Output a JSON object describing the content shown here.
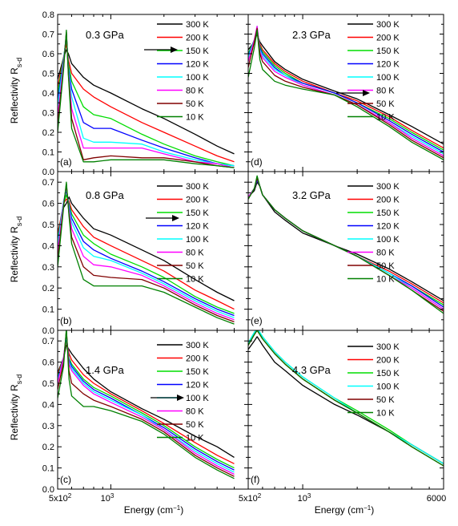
{
  "figure": {
    "ylabel_main": "Reflectivity R",
    "ylabel_sub": "s-d",
    "xlabel_main": "Energy (cm",
    "xlabel_sup": "−1",
    "xlabel_end": ")",
    "x_tick_labels_left": [
      "5x10",
      "10"
    ],
    "x_tick_labels_right": [
      "5x10",
      "10",
      "6000"
    ],
    "x_tick_sup_2": "2",
    "x_tick_sup_3": "3",
    "y_tick_labels_top": [
      "0.0",
      "0.1",
      "0.2",
      "0.3",
      "0.4",
      "0.5",
      "0.6",
      "0.7",
      "0.8"
    ],
    "y_tick_labels_lower": [
      "0.0",
      "0.1",
      "0.2",
      "0.3",
      "0.4",
      "0.5",
      "0.6",
      "0.7"
    ]
  },
  "chart_data": [
    {
      "type": "line",
      "panel": "(a)",
      "pressure": "0.3 GPa",
      "xlim": [
        500,
        6000
      ],
      "ylim": [
        0,
        0.8
      ],
      "xscale": "log",
      "x": [
        500,
        540,
        560,
        575,
        600,
        700,
        800,
        1000,
        1500,
        2000,
        3000,
        4000,
        5000
      ],
      "series": [
        {
          "name": "300 K",
          "color": "#000000",
          "values": [
            0.47,
            0.58,
            0.62,
            0.6,
            0.55,
            0.48,
            0.44,
            0.4,
            0.32,
            0.27,
            0.19,
            0.13,
            0.09
          ]
        },
        {
          "name": "200 K",
          "color": "#ff0000",
          "values": [
            0.43,
            0.58,
            0.65,
            0.57,
            0.5,
            0.42,
            0.38,
            0.33,
            0.25,
            0.2,
            0.13,
            0.08,
            0.05
          ]
        },
        {
          "name": "150 K",
          "color": "#00dd00",
          "values": [
            0.4,
            0.58,
            0.68,
            0.55,
            0.46,
            0.33,
            0.29,
            0.27,
            0.19,
            0.14,
            0.08,
            0.05,
            0.03
          ]
        },
        {
          "name": "120 K",
          "color": "#0000ff",
          "values": [
            0.36,
            0.57,
            0.69,
            0.53,
            0.42,
            0.25,
            0.22,
            0.22,
            0.16,
            0.12,
            0.07,
            0.04,
            0.03
          ]
        },
        {
          "name": "100 K",
          "color": "#00ffff",
          "values": [
            0.33,
            0.56,
            0.7,
            0.52,
            0.38,
            0.17,
            0.15,
            0.15,
            0.14,
            0.1,
            0.06,
            0.04,
            0.03
          ]
        },
        {
          "name": "80 K",
          "color": "#ff00ff",
          "values": [
            0.28,
            0.55,
            0.71,
            0.51,
            0.32,
            0.12,
            0.12,
            0.12,
            0.12,
            0.09,
            0.05,
            0.04,
            0.02
          ]
        },
        {
          "name": "50 K",
          "color": "#800000",
          "values": [
            0.24,
            0.53,
            0.71,
            0.5,
            0.27,
            0.06,
            0.07,
            0.08,
            0.07,
            0.07,
            0.05,
            0.03,
            0.02
          ]
        },
        {
          "name": "10 K",
          "color": "#008000",
          "values": [
            0.2,
            0.52,
            0.72,
            0.49,
            0.22,
            0.05,
            0.05,
            0.06,
            0.06,
            0.06,
            0.04,
            0.03,
            0.02
          ]
        }
      ]
    },
    {
      "type": "line",
      "panel": "(b)",
      "pressure": "0.8 GPa",
      "xlim": [
        500,
        6000
      ],
      "ylim": [
        0,
        0.75
      ],
      "xscale": "log",
      "x": [
        500,
        540,
        560,
        580,
        600,
        700,
        800,
        1000,
        1500,
        2000,
        3000,
        4000,
        5000
      ],
      "series": [
        {
          "name": "300 K",
          "color": "#000000",
          "values": [
            0.46,
            0.58,
            0.6,
            0.63,
            0.6,
            0.53,
            0.48,
            0.45,
            0.38,
            0.33,
            0.24,
            0.18,
            0.14
          ]
        },
        {
          "name": "200 K",
          "color": "#ff0000",
          "values": [
            0.45,
            0.6,
            0.62,
            0.61,
            0.57,
            0.49,
            0.44,
            0.4,
            0.33,
            0.28,
            0.19,
            0.14,
            0.1
          ]
        },
        {
          "name": "150 K",
          "color": "#00dd00",
          "values": [
            0.43,
            0.6,
            0.64,
            0.6,
            0.55,
            0.45,
            0.41,
            0.36,
            0.3,
            0.25,
            0.16,
            0.11,
            0.08
          ]
        },
        {
          "name": "120 K",
          "color": "#0000ff",
          "values": [
            0.41,
            0.61,
            0.66,
            0.59,
            0.53,
            0.42,
            0.38,
            0.34,
            0.28,
            0.23,
            0.15,
            0.1,
            0.07
          ]
        },
        {
          "name": "100 K",
          "color": "#00ffff",
          "values": [
            0.4,
            0.61,
            0.67,
            0.58,
            0.51,
            0.39,
            0.35,
            0.33,
            0.27,
            0.22,
            0.14,
            0.09,
            0.06
          ]
        },
        {
          "name": "80 K",
          "color": "#ff00ff",
          "values": [
            0.37,
            0.6,
            0.68,
            0.57,
            0.48,
            0.35,
            0.31,
            0.3,
            0.26,
            0.21,
            0.13,
            0.08,
            0.05
          ]
        },
        {
          "name": "50 K",
          "color": "#800000",
          "values": [
            0.33,
            0.59,
            0.69,
            0.55,
            0.44,
            0.3,
            0.26,
            0.25,
            0.24,
            0.2,
            0.12,
            0.07,
            0.04
          ]
        },
        {
          "name": "10 K",
          "color": "#008000",
          "values": [
            0.3,
            0.58,
            0.7,
            0.54,
            0.41,
            0.24,
            0.21,
            0.21,
            0.21,
            0.18,
            0.11,
            0.06,
            0.03
          ]
        }
      ]
    },
    {
      "type": "line",
      "panel": "(c)",
      "pressure": "1.4 GPa",
      "xlim": [
        500,
        6000
      ],
      "ylim": [
        0,
        0.75
      ],
      "xscale": "log",
      "x": [
        500,
        540,
        560,
        580,
        600,
        700,
        800,
        1000,
        1500,
        2000,
        3000,
        4000,
        5000
      ],
      "series": [
        {
          "name": "300 K",
          "color": "#000000",
          "values": [
            0.55,
            0.62,
            0.68,
            0.66,
            0.64,
            0.57,
            0.52,
            0.46,
            0.38,
            0.33,
            0.25,
            0.2,
            0.15
          ]
        },
        {
          "name": "200 K",
          "color": "#ff0000",
          "values": [
            0.54,
            0.62,
            0.7,
            0.64,
            0.61,
            0.54,
            0.5,
            0.45,
            0.37,
            0.31,
            0.22,
            0.16,
            0.12
          ]
        },
        {
          "name": "150 K",
          "color": "#00dd00",
          "values": [
            0.53,
            0.62,
            0.71,
            0.62,
            0.59,
            0.52,
            0.48,
            0.44,
            0.36,
            0.3,
            0.2,
            0.14,
            0.1
          ]
        },
        {
          "name": "120 K",
          "color": "#0000ff",
          "values": [
            0.52,
            0.62,
            0.72,
            0.61,
            0.58,
            0.51,
            0.47,
            0.43,
            0.35,
            0.29,
            0.19,
            0.13,
            0.09
          ]
        },
        {
          "name": "100 K",
          "color": "#00ffff",
          "values": [
            0.51,
            0.62,
            0.73,
            0.6,
            0.57,
            0.5,
            0.46,
            0.42,
            0.35,
            0.28,
            0.18,
            0.12,
            0.08
          ]
        },
        {
          "name": "80 K",
          "color": "#ff00ff",
          "values": [
            0.5,
            0.62,
            0.74,
            0.59,
            0.56,
            0.49,
            0.45,
            0.41,
            0.34,
            0.28,
            0.17,
            0.11,
            0.07
          ]
        },
        {
          "name": "50 K",
          "color": "#800000",
          "values": [
            0.47,
            0.6,
            0.75,
            0.56,
            0.5,
            0.45,
            0.42,
            0.39,
            0.33,
            0.27,
            0.16,
            0.1,
            0.06
          ]
        },
        {
          "name": "10 K",
          "color": "#008000",
          "values": [
            0.43,
            0.58,
            0.76,
            0.52,
            0.44,
            0.39,
            0.39,
            0.37,
            0.32,
            0.26,
            0.15,
            0.09,
            0.05
          ]
        }
      ]
    },
    {
      "type": "line",
      "panel": "(d)",
      "pressure": "2.3 GPa",
      "xlim": [
        500,
        6000
      ],
      "ylim": [
        0,
        0.8
      ],
      "xscale": "log",
      "x": [
        500,
        540,
        560,
        580,
        600,
        700,
        800,
        1000,
        1500,
        2000,
        3000,
        4000,
        6000
      ],
      "series": [
        {
          "name": "300 K",
          "color": "#000000",
          "values": [
            0.62,
            0.66,
            0.7,
            0.66,
            0.64,
            0.56,
            0.52,
            0.47,
            0.41,
            0.37,
            0.29,
            0.23,
            0.14
          ]
        },
        {
          "name": "200 K",
          "color": "#ff0000",
          "values": [
            0.6,
            0.66,
            0.71,
            0.65,
            0.62,
            0.55,
            0.51,
            0.46,
            0.4,
            0.36,
            0.28,
            0.21,
            0.12
          ]
        },
        {
          "name": "150 K",
          "color": "#00dd00",
          "values": [
            0.6,
            0.67,
            0.72,
            0.64,
            0.61,
            0.54,
            0.5,
            0.45,
            0.4,
            0.35,
            0.27,
            0.2,
            0.11
          ]
        },
        {
          "name": "120 K",
          "color": "#0000ff",
          "values": [
            0.59,
            0.67,
            0.73,
            0.63,
            0.6,
            0.53,
            0.49,
            0.45,
            0.4,
            0.35,
            0.26,
            0.19,
            0.1
          ]
        },
        {
          "name": "100 K",
          "color": "#00ffff",
          "values": [
            0.58,
            0.67,
            0.74,
            0.62,
            0.59,
            0.52,
            0.49,
            0.44,
            0.39,
            0.34,
            0.25,
            0.18,
            0.09
          ]
        },
        {
          "name": "80 K",
          "color": "#ff00ff",
          "values": [
            0.56,
            0.67,
            0.74,
            0.61,
            0.58,
            0.51,
            0.48,
            0.44,
            0.39,
            0.34,
            0.25,
            0.17,
            0.08
          ]
        },
        {
          "name": "50 K",
          "color": "#800000",
          "values": [
            0.53,
            0.66,
            0.73,
            0.6,
            0.56,
            0.49,
            0.46,
            0.43,
            0.39,
            0.34,
            0.24,
            0.16,
            0.07
          ]
        },
        {
          "name": "10 K",
          "color": "#008000",
          "values": [
            0.48,
            0.63,
            0.72,
            0.57,
            0.52,
            0.46,
            0.44,
            0.42,
            0.39,
            0.33,
            0.23,
            0.15,
            0.06
          ]
        }
      ]
    },
    {
      "type": "line",
      "panel": "(e)",
      "pressure": "3.2 GPa",
      "xlim": [
        500,
        6000
      ],
      "ylim": [
        0,
        0.75
      ],
      "xscale": "log",
      "x": [
        500,
        540,
        560,
        580,
        600,
        700,
        800,
        1000,
        1500,
        2000,
        3000,
        4000,
        6000
      ],
      "series": [
        {
          "name": "300 K",
          "color": "#000000",
          "values": [
            0.63,
            0.66,
            0.7,
            0.68,
            0.64,
            0.56,
            0.52,
            0.46,
            0.4,
            0.36,
            0.29,
            0.23,
            0.14
          ]
        },
        {
          "name": "200 K",
          "color": "#ff0000",
          "values": [
            0.63,
            0.67,
            0.71,
            0.68,
            0.64,
            0.57,
            0.53,
            0.47,
            0.4,
            0.35,
            0.28,
            0.22,
            0.13
          ]
        },
        {
          "name": "150 K",
          "color": "#00dd00",
          "values": [
            0.63,
            0.67,
            0.71,
            0.68,
            0.64,
            0.57,
            0.53,
            0.47,
            0.4,
            0.35,
            0.27,
            0.21,
            0.12
          ]
        },
        {
          "name": "120 K",
          "color": "#0000ff",
          "values": [
            0.63,
            0.67,
            0.71,
            0.68,
            0.64,
            0.57,
            0.53,
            0.47,
            0.4,
            0.35,
            0.27,
            0.21,
            0.11
          ]
        },
        {
          "name": "100 K",
          "color": "#00ffff",
          "values": [
            0.63,
            0.67,
            0.72,
            0.68,
            0.64,
            0.57,
            0.53,
            0.47,
            0.4,
            0.35,
            0.27,
            0.2,
            0.1
          ]
        },
        {
          "name": "80 K",
          "color": "#ff00ff",
          "values": [
            0.63,
            0.67,
            0.72,
            0.68,
            0.64,
            0.57,
            0.53,
            0.47,
            0.4,
            0.35,
            0.26,
            0.2,
            0.1
          ]
        },
        {
          "name": "50 K",
          "color": "#800000",
          "values": [
            0.62,
            0.67,
            0.72,
            0.68,
            0.64,
            0.57,
            0.53,
            0.47,
            0.4,
            0.35,
            0.26,
            0.19,
            0.09
          ]
        },
        {
          "name": "10 K",
          "color": "#008000",
          "values": [
            0.62,
            0.67,
            0.73,
            0.68,
            0.64,
            0.57,
            0.53,
            0.47,
            0.4,
            0.35,
            0.26,
            0.19,
            0.08
          ]
        }
      ]
    },
    {
      "type": "line",
      "panel": "(f)",
      "pressure": "4.3 GPa",
      "xlim": [
        500,
        6000
      ],
      "ylim": [
        0,
        0.75
      ],
      "xscale": "log",
      "x": [
        500,
        540,
        560,
        580,
        600,
        700,
        800,
        1000,
        1500,
        2000,
        3000,
        4000,
        6000
      ],
      "series": [
        {
          "name": "300 K",
          "color": "#000000",
          "values": [
            0.66,
            0.7,
            0.72,
            0.7,
            0.68,
            0.6,
            0.56,
            0.49,
            0.4,
            0.35,
            0.27,
            0.21,
            0.12
          ]
        },
        {
          "name": "200 K",
          "color": "#ff0000",
          "values": [
            0.68,
            0.73,
            0.75,
            0.73,
            0.71,
            0.64,
            0.59,
            0.52,
            0.42,
            0.36,
            0.27,
            0.21,
            0.12
          ]
        },
        {
          "name": "150 K",
          "color": "#00dd00",
          "values": [
            0.69,
            0.74,
            0.76,
            0.74,
            0.72,
            0.65,
            0.6,
            0.53,
            0.43,
            0.37,
            0.28,
            0.21,
            0.12
          ]
        },
        {
          "name": "100 K",
          "color": "#00ffff",
          "values": [
            0.69,
            0.74,
            0.76,
            0.74,
            0.72,
            0.65,
            0.6,
            0.53,
            0.43,
            0.36,
            0.27,
            0.21,
            0.12
          ]
        },
        {
          "name": "50 K",
          "color": "#800000",
          "values": [
            0.68,
            0.73,
            0.75,
            0.73,
            0.71,
            0.64,
            0.59,
            0.52,
            0.42,
            0.36,
            0.27,
            0.2,
            0.11
          ]
        },
        {
          "name": "10 K",
          "color": "#008000",
          "values": [
            0.68,
            0.73,
            0.75,
            0.73,
            0.71,
            0.64,
            0.59,
            0.52,
            0.42,
            0.36,
            0.27,
            0.2,
            0.11
          ]
        }
      ]
    }
  ]
}
